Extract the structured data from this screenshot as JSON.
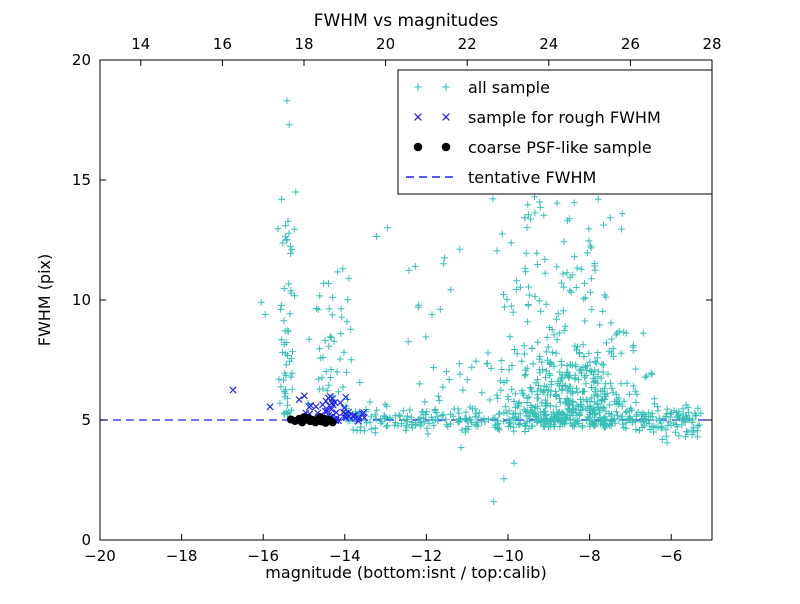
{
  "figure": {
    "background": "#ffffff",
    "frame_color": "#000000"
  },
  "chart_data": {
    "type": "scatter",
    "title": "FWHM vs magnitudes",
    "xlabel": "magnitude (bottom:isnt / top:calib)",
    "ylabel": "FWHM (pix)",
    "xlim": [
      -20,
      -5
    ],
    "ylim": [
      0,
      20
    ],
    "x_ticks_bottom": [
      -20,
      -18,
      -16,
      -14,
      -12,
      -10,
      -8,
      -6
    ],
    "x_ticks_top": [
      14,
      16,
      18,
      20,
      22,
      24,
      26,
      28
    ],
    "top_axis_offset": 33,
    "y_ticks": [
      0,
      5,
      10,
      15,
      20
    ],
    "grid": false,
    "legend_position": "upper center-right",
    "hline": {
      "y": 5,
      "color": "#1f1fff",
      "style": "dashed",
      "label": "tentative FWHM"
    },
    "seed": 20240512,
    "series": [
      {
        "name": "all sample",
        "marker": "plus",
        "color": "#35bfb7",
        "points": [
          [
            -15.42,
            18.3
          ],
          [
            -15.36,
            17.3
          ],
          [
            -16.05,
            9.9
          ],
          [
            -15.95,
            9.4
          ],
          [
            -15.2,
            14.5
          ],
          [
            -15.55,
            14.2
          ],
          [
            -15.45,
            13.1
          ],
          [
            -15.3,
            12.1
          ],
          [
            -14.05,
            11.3
          ],
          [
            -13.9,
            10.9
          ],
          [
            -10.35,
            1.6
          ],
          [
            -10.1,
            2.55
          ],
          [
            -9.85,
            3.2
          ],
          [
            -11.15,
            3.85
          ],
          [
            -6.1,
            4.05
          ],
          [
            -5.65,
            4.3
          ],
          [
            -5.45,
            4.5
          ],
          [
            -7.6,
            14.9
          ],
          [
            -8.2,
            14.7
          ],
          [
            -9.35,
            14.3
          ],
          [
            -8.6,
            15.2
          ]
        ],
        "clusters": [
          {
            "n": 120,
            "x": {
              "dist": "uniform",
              "min": -14.05,
              "max": -11.0
            },
            "y": {
              "dist": "gauss",
              "mean": 5.05,
              "sd": 0.28,
              "min": 4.3,
              "max": 6.0
            }
          },
          {
            "n": 230,
            "x": {
              "dist": "uniform",
              "min": -11.0,
              "max": -5.25
            },
            "y": {
              "dist": "gauss",
              "mean": 5.05,
              "sd": 0.28,
              "min": 4.3,
              "max": 6.0
            }
          },
          {
            "n": 420,
            "x": {
              "dist": "gauss",
              "mean": -8.55,
              "sd": 0.85,
              "min": -10.9,
              "max": -6.3
            },
            "y": {
              "dist": "halfgauss",
              "base": 4.7,
              "scale": 2.1,
              "max": 13.5
            }
          },
          {
            "n": 70,
            "x": {
              "dist": "gauss",
              "mean": -8.8,
              "sd": 0.8,
              "min": -10.6,
              "max": -7.0
            },
            "y": {
              "dist": "uniform",
              "min": 9.5,
              "max": 14.6
            }
          },
          {
            "n": 25,
            "x": {
              "dist": "uniform",
              "min": -6.4,
              "max": -5.3
            },
            "y": {
              "dist": "gauss",
              "mean": 4.8,
              "sd": 0.4,
              "min": 3.9,
              "max": 5.6
            }
          },
          {
            "n": 40,
            "x": {
              "dist": "gauss",
              "mean": -15.45,
              "sd": 0.1,
              "min": -15.75,
              "max": -15.15
            },
            "y": {
              "dist": "uniform",
              "min": 5.2,
              "max": 13.5
            }
          },
          {
            "n": 14,
            "x": {
              "dist": "gauss",
              "mean": -15.4,
              "sd": 0.09,
              "min": -15.7,
              "max": -15.1
            },
            "y": {
              "dist": "uniform",
              "min": 5.1,
              "max": 7.0
            }
          },
          {
            "n": 45,
            "x": {
              "dist": "gauss",
              "mean": -14.3,
              "sd": 0.28,
              "min": -14.9,
              "max": -13.6
            },
            "y": {
              "dist": "gauss",
              "mean": 8.2,
              "sd": 1.5,
              "min": 5.6,
              "max": 11.4
            }
          },
          {
            "n": 14,
            "x": {
              "dist": "uniform",
              "min": -13.3,
              "max": -11.1
            },
            "y": {
              "dist": "uniform",
              "min": 8.2,
              "max": 13.2
            }
          },
          {
            "n": 18,
            "x": {
              "dist": "uniform",
              "min": -12.2,
              "max": -9.8
            },
            "y": {
              "dist": "uniform",
              "min": 5.8,
              "max": 7.6
            }
          }
        ]
      },
      {
        "name": "sample for rough FWHM",
        "marker": "x",
        "color": "#2424ee",
        "points": [
          [
            -16.74,
            6.25
          ],
          [
            -15.83,
            5.55
          ],
          [
            -15.12,
            5.85
          ],
          [
            -13.52,
            5.1
          ]
        ],
        "clusters": [
          {
            "n": 52,
            "x": {
              "dist": "gauss",
              "mean": -14.3,
              "sd": 0.38,
              "min": -15.2,
              "max": -13.5
            },
            "y": {
              "dist": "halfgauss",
              "base": 4.92,
              "scale": 0.5,
              "max": 6.35
            }
          }
        ]
      },
      {
        "name": "coarse PSF-like sample",
        "marker": "dot",
        "color": "#000000",
        "points": [
          [
            -15.32,
            5.02
          ],
          [
            -15.22,
            4.96
          ],
          [
            -15.12,
            5.05
          ],
          [
            -15.05,
            4.9
          ],
          [
            -14.98,
            5.0
          ],
          [
            -14.9,
            5.08
          ],
          [
            -14.85,
            4.95
          ],
          [
            -14.78,
            5.0
          ],
          [
            -14.72,
            4.9
          ],
          [
            -14.65,
            5.03
          ],
          [
            -14.58,
            4.94
          ],
          [
            -14.52,
            5.06
          ],
          [
            -14.45,
            4.97
          ],
          [
            -14.38,
            5.0
          ],
          [
            -14.3,
            4.9
          ],
          [
            -15.0,
            5.12
          ],
          [
            -14.6,
            5.12
          ],
          [
            -14.47,
            4.88
          ]
        ],
        "clusters": []
      }
    ]
  }
}
